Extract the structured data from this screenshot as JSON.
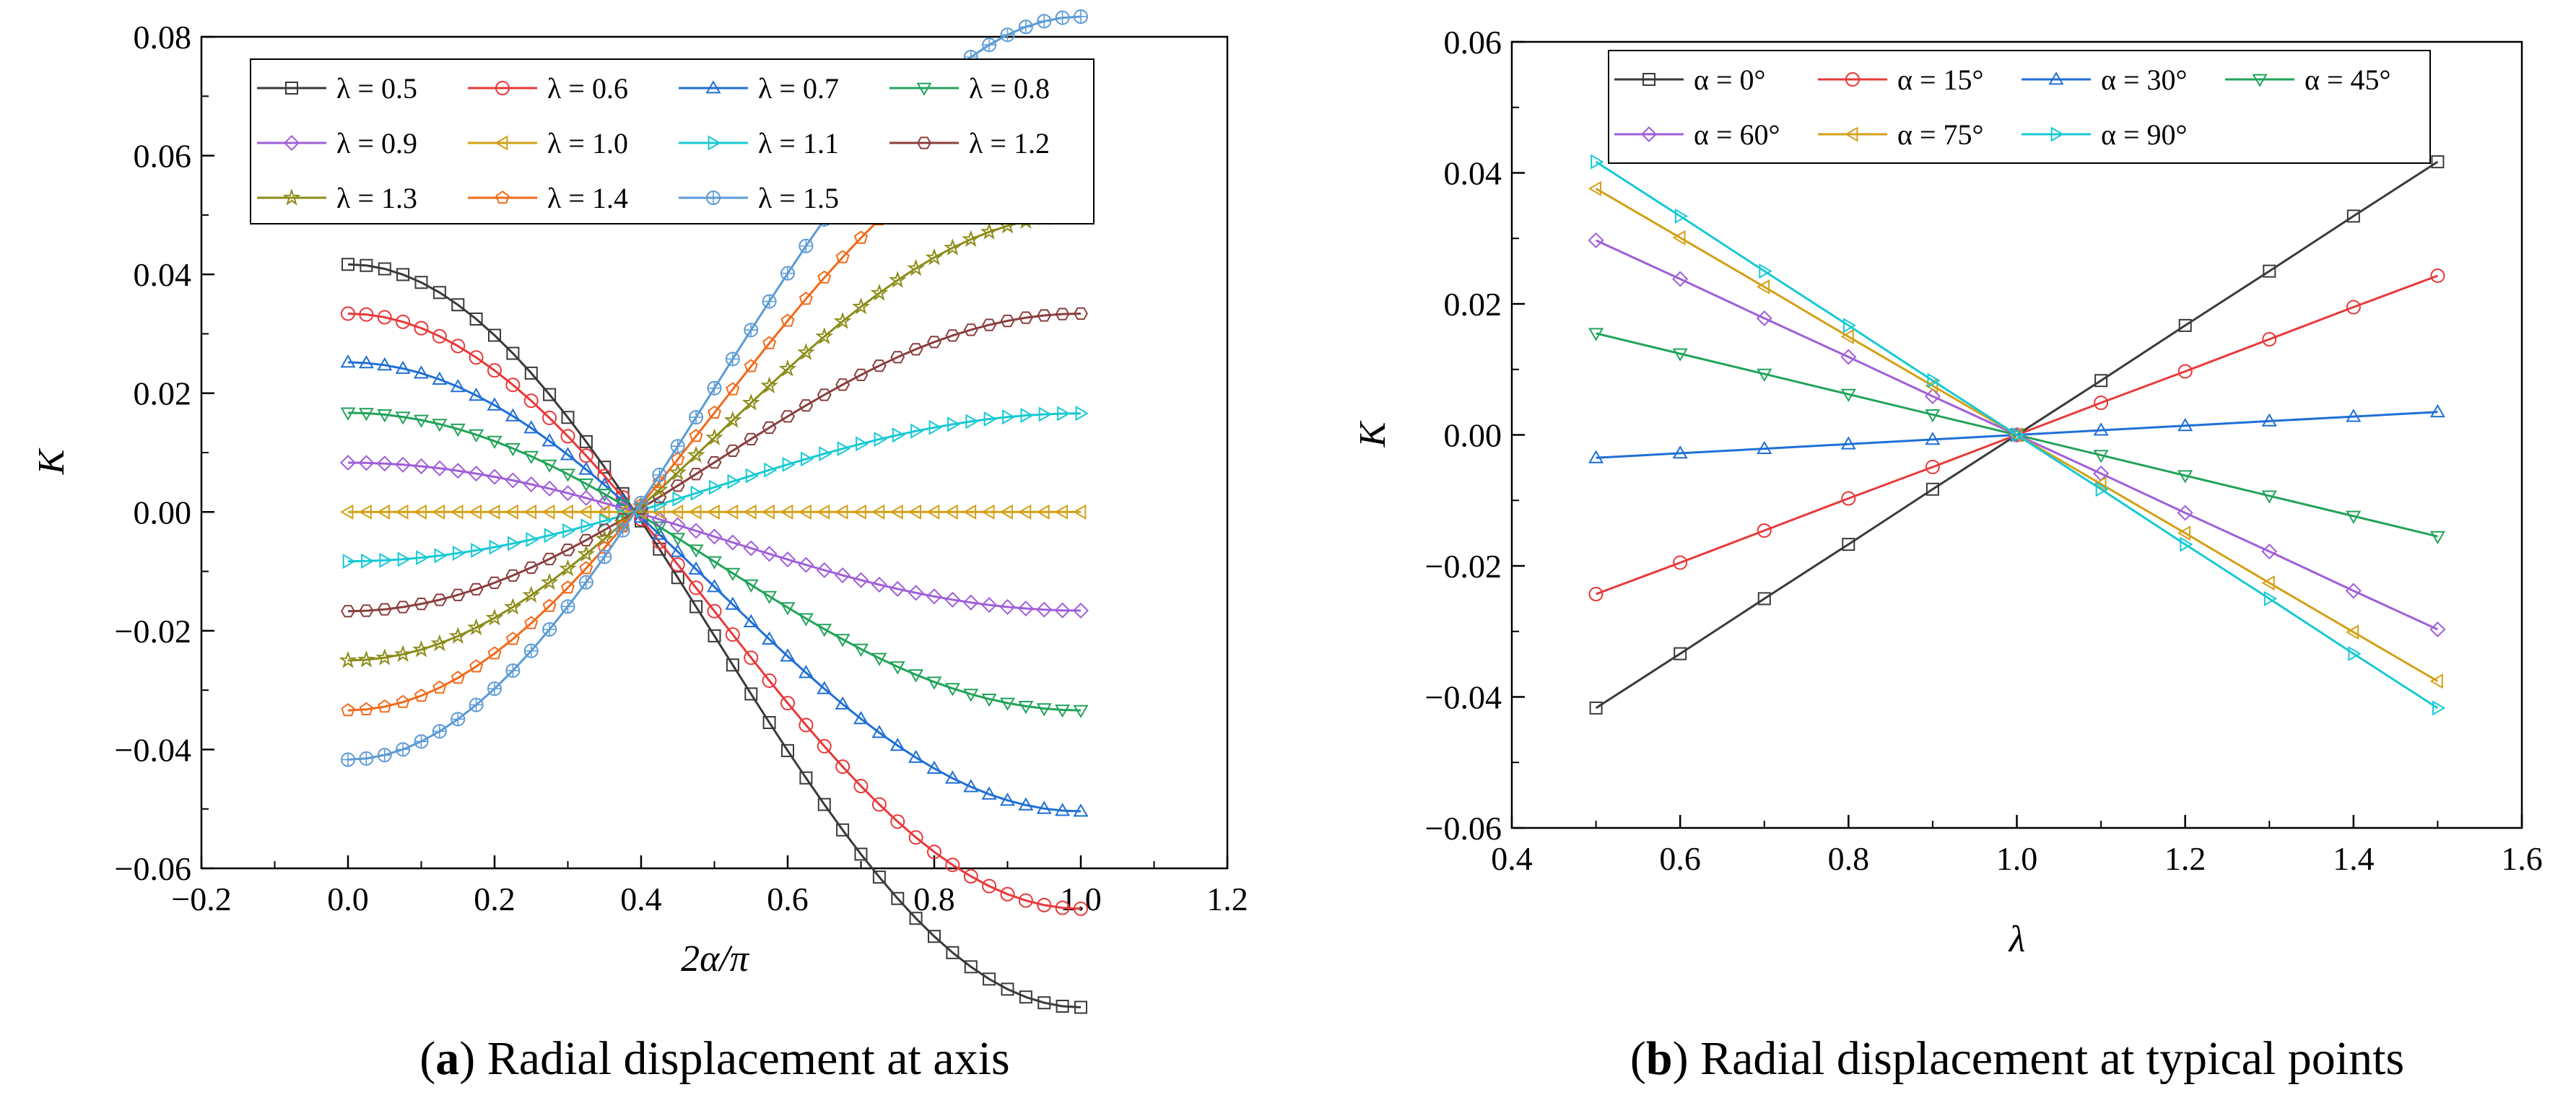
{
  "figure": {
    "panels": [
      {
        "label": "a",
        "caption": "Radial displacement at axis"
      },
      {
        "label": "b",
        "caption": "Radial displacement at typical points"
      }
    ]
  },
  "chart_data": [
    {
      "type": "line",
      "panel": "a",
      "title": "",
      "xlabel": "2α/π",
      "ylabel": "K",
      "xlim": [
        -0.2,
        1.2
      ],
      "ylim": [
        -0.06,
        0.08
      ],
      "xticks": [
        "−0.2",
        "0.0",
        "0.2",
        "0.4",
        "0.6",
        "0.8",
        "1.0",
        "1.2"
      ],
      "yticks": [
        "−0.06",
        "−0.04",
        "−0.02",
        "0.00",
        "0.02",
        "0.04",
        "0.06",
        "0.08"
      ],
      "x": [
        0.0,
        0.025,
        0.05,
        0.075,
        0.1,
        0.125,
        0.15,
        0.175,
        0.2,
        0.225,
        0.25,
        0.275,
        0.3,
        0.325,
        0.35,
        0.375,
        0.4,
        0.425,
        0.45,
        0.475,
        0.5,
        0.525,
        0.55,
        0.575,
        0.6,
        0.625,
        0.65,
        0.675,
        0.7,
        0.725,
        0.75,
        0.775,
        0.8,
        0.825,
        0.85,
        0.875,
        0.9,
        0.925,
        0.95,
        0.975,
        1.0
      ],
      "curve_model": "K = amplitude * (1 - 3 * cos(π·x))/2 ... values listed per series",
      "legend_ncol": 4,
      "legend_position": "top-left",
      "series": [
        {
          "name": "λ = 0.5",
          "amplitude": -0.0417,
          "color": "#3a3a3a",
          "marker": "square"
        },
        {
          "name": "λ = 0.6",
          "amplitude": -0.0334,
          "color": "#e8393a",
          "marker": "circle"
        },
        {
          "name": "λ = 0.7",
          "amplitude": -0.0252,
          "color": "#1f6fd6",
          "marker": "triangle-up"
        },
        {
          "name": "λ = 0.8",
          "amplitude": -0.0167,
          "color": "#22a35a",
          "marker": "triangle-down"
        },
        {
          "name": "λ = 0.9",
          "amplitude": -0.0083,
          "color": "#a05ed8",
          "marker": "diamond"
        },
        {
          "name": "λ = 1.0",
          "amplitude": 0.0,
          "color": "#d4a017",
          "marker": "triangle-left"
        },
        {
          "name": "λ = 1.1",
          "amplitude": 0.0083,
          "color": "#17c9d4",
          "marker": "triangle-right"
        },
        {
          "name": "λ = 1.2",
          "amplitude": 0.0167,
          "color": "#8a3e3e",
          "marker": "hexagon"
        },
        {
          "name": "λ = 1.3",
          "amplitude": 0.025,
          "color": "#8c8c1a",
          "marker": "star"
        },
        {
          "name": "λ = 1.4",
          "amplitude": 0.0334,
          "color": "#f26a1b",
          "marker": "pentagon"
        },
        {
          "name": "λ = 1.5",
          "amplitude": 0.0417,
          "color": "#5c9bd6",
          "marker": "circle-cross"
        }
      ]
    },
    {
      "type": "line",
      "panel": "b",
      "title": "",
      "xlabel": "λ",
      "ylabel": "K",
      "xlim": [
        0.4,
        1.6
      ],
      "ylim": [
        -0.06,
        0.06
      ],
      "xticks": [
        "0.4",
        "0.6",
        "0.8",
        "1.0",
        "1.2",
        "1.4",
        "1.6"
      ],
      "yticks": [
        "−0.06",
        "−0.04",
        "−0.02",
        "0.00",
        "0.02",
        "0.04",
        "0.06"
      ],
      "x": [
        0.5,
        0.6,
        0.7,
        0.8,
        0.9,
        1.0,
        1.1,
        1.2,
        1.3,
        1.4,
        1.5
      ],
      "legend_ncol": 4,
      "legend_position": "top",
      "series": [
        {
          "name": "α = 0°",
          "values": [
            -0.0417,
            -0.0334,
            -0.025,
            -0.0167,
            -0.0083,
            0.0,
            0.0083,
            0.0167,
            0.025,
            0.0334,
            0.0417
          ],
          "color": "#3a3a3a",
          "marker": "square"
        },
        {
          "name": "α = 15°",
          "values": [
            -0.0243,
            -0.0195,
            -0.0146,
            -0.0097,
            -0.0049,
            0.0,
            0.0049,
            0.0097,
            0.0146,
            0.0195,
            0.0243
          ],
          "color": "#e8393a",
          "marker": "circle"
        },
        {
          "name": "α = 30°",
          "values": [
            -0.0035,
            -0.0028,
            -0.0021,
            -0.0014,
            -0.0007,
            0.0,
            0.0007,
            0.0014,
            0.0021,
            0.0028,
            0.0035
          ],
          "color": "#1f6fd6",
          "marker": "triangle-up"
        },
        {
          "name": "α = 45°",
          "values": [
            0.0155,
            0.0124,
            0.0093,
            0.0062,
            0.0031,
            0.0,
            -0.0031,
            -0.0062,
            -0.0093,
            -0.0124,
            -0.0155
          ],
          "color": "#22a35a",
          "marker": "triangle-down"
        },
        {
          "name": "α = 60°",
          "values": [
            0.0297,
            0.0238,
            0.0178,
            0.0119,
            0.0059,
            0.0,
            -0.0059,
            -0.0119,
            -0.0178,
            -0.0238,
            -0.0297
          ],
          "color": "#a05ed8",
          "marker": "diamond"
        },
        {
          "name": "α = 75°",
          "values": [
            0.0376,
            0.0301,
            0.0226,
            0.015,
            0.0075,
            0.0,
            -0.0075,
            -0.015,
            -0.0226,
            -0.0301,
            -0.0376
          ],
          "color": "#d4a017",
          "marker": "triangle-left"
        },
        {
          "name": "α = 90°",
          "values": [
            0.0417,
            0.0334,
            0.025,
            0.0167,
            0.0083,
            0.0,
            -0.0083,
            -0.0167,
            -0.025,
            -0.0334,
            -0.0417
          ],
          "color": "#17c9d4",
          "marker": "triangle-right"
        }
      ]
    }
  ]
}
